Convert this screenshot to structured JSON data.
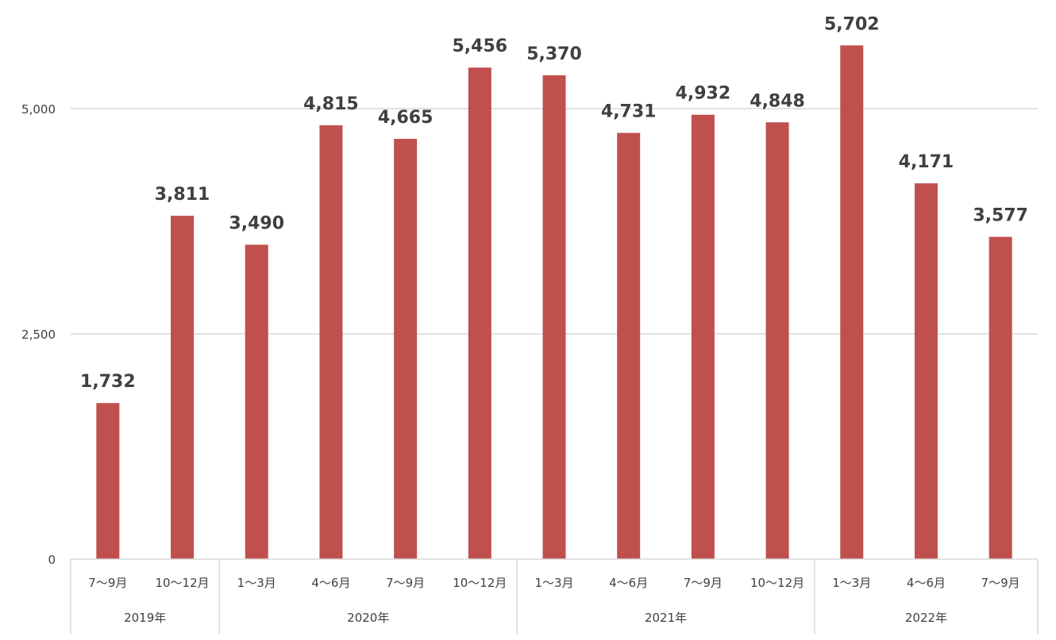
{
  "chart_data": {
    "type": "bar",
    "title": "",
    "xlabel": "",
    "ylabel": "",
    "ylim": [
      0,
      5600
    ],
    "yticks": [
      0,
      2500,
      5000
    ],
    "ytick_labels": [
      "0",
      "2,500",
      "5,000"
    ],
    "grid": true,
    "legend": "none",
    "categories": [
      "7〜9月",
      "10〜12月",
      "1〜3月",
      "4〜6月",
      "7〜9月",
      "10〜12月",
      "1〜3月",
      "4〜6月",
      "7〜9月",
      "10〜12月",
      "1〜3月",
      "4〜6月",
      "7〜9月"
    ],
    "values": [
      1732,
      3811,
      3490,
      4815,
      4665,
      5456,
      5370,
      4731,
      4932,
      4848,
      5702,
      4171,
      3577
    ],
    "value_labels": [
      "1,732",
      "3,811",
      "3,490",
      "4,815",
      "4,665",
      "5,456",
      "5,370",
      "4,731",
      "4,932",
      "4,848",
      "5,702",
      "4,171",
      "3,577"
    ],
    "year_groups": [
      {
        "label": "2019年",
        "count": 2
      },
      {
        "label": "2020年",
        "count": 4
      },
      {
        "label": "2021年",
        "count": 4
      },
      {
        "label": "2022年",
        "count": 3
      }
    ],
    "colors": {
      "bar": "#c0504d",
      "grid": "#d9d9d9",
      "axis": "#d9d9d9",
      "text": "#404040"
    }
  }
}
